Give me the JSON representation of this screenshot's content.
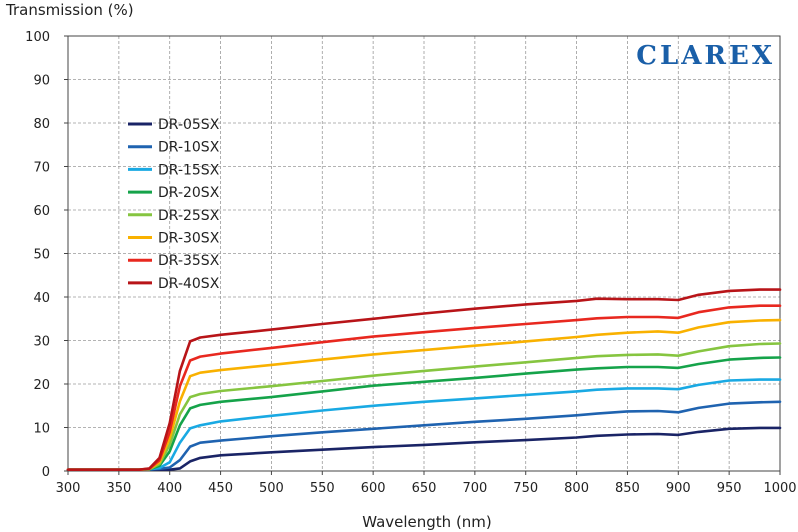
{
  "brand": {
    "text": "CLAREX",
    "color": "#1a5fa8"
  },
  "chart_data": {
    "type": "line",
    "title": "",
    "xlabel": "Wavelength (nm)",
    "ylabel": "Transmission (%)",
    "xlim": [
      300,
      1000
    ],
    "ylim": [
      0,
      100
    ],
    "x_ticks": [
      300,
      350,
      400,
      450,
      500,
      550,
      600,
      650,
      700,
      750,
      800,
      850,
      900,
      950,
      1000
    ],
    "y_ticks": [
      0,
      10,
      20,
      30,
      40,
      50,
      60,
      70,
      80,
      90,
      100
    ],
    "grid": "dashed",
    "legend_position": "upper-left",
    "x": [
      300,
      340,
      370,
      380,
      390,
      400,
      410,
      420,
      430,
      450,
      500,
      550,
      600,
      650,
      700,
      750,
      800,
      820,
      850,
      880,
      900,
      920,
      950,
      980,
      1000
    ],
    "series": [
      {
        "name": "DR-05SX",
        "color": "#1a2466",
        "values": [
          0.3,
          0.3,
          0.3,
          0.3,
          0.3,
          0.3,
          0.6,
          2.2,
          3.0,
          3.6,
          4.3,
          4.9,
          5.5,
          6.0,
          6.6,
          7.1,
          7.7,
          8.1,
          8.4,
          8.5,
          8.3,
          9.0,
          9.7,
          9.9,
          9.9
        ]
      },
      {
        "name": "DR-10SX",
        "color": "#1f63b0",
        "values": [
          0.3,
          0.3,
          0.3,
          0.4,
          0.5,
          0.8,
          2.5,
          5.6,
          6.5,
          7.0,
          8.0,
          8.9,
          9.7,
          10.5,
          11.3,
          12.0,
          12.8,
          13.2,
          13.7,
          13.8,
          13.5,
          14.5,
          15.5,
          15.8,
          15.9
        ]
      },
      {
        "name": "DR-15SX",
        "color": "#19a9e3",
        "values": [
          0.3,
          0.3,
          0.3,
          0.4,
          0.7,
          2.0,
          6.5,
          9.8,
          10.5,
          11.4,
          12.7,
          13.9,
          15.0,
          15.9,
          16.7,
          17.5,
          18.3,
          18.7,
          19.0,
          19.0,
          18.8,
          19.8,
          20.8,
          21.0,
          21.0
        ]
      },
      {
        "name": "DR-20SX",
        "color": "#15a34a",
        "values": [
          0.3,
          0.3,
          0.3,
          0.4,
          1.2,
          4.5,
          10.5,
          14.4,
          15.2,
          15.9,
          17.0,
          18.3,
          19.6,
          20.5,
          21.4,
          22.4,
          23.3,
          23.6,
          23.9,
          23.9,
          23.7,
          24.6,
          25.6,
          26.0,
          26.1
        ]
      },
      {
        "name": "DR-25SX",
        "color": "#86c540",
        "values": [
          0.3,
          0.3,
          0.3,
          0.4,
          1.6,
          6.0,
          13.0,
          17.0,
          17.7,
          18.4,
          19.5,
          20.7,
          21.9,
          23.0,
          24.0,
          25.0,
          26.0,
          26.4,
          26.7,
          26.8,
          26.5,
          27.5,
          28.7,
          29.2,
          29.3
        ]
      },
      {
        "name": "DR-30SX",
        "color": "#f9b100",
        "values": [
          0.3,
          0.3,
          0.3,
          0.5,
          2.0,
          7.5,
          16.0,
          21.8,
          22.6,
          23.2,
          24.4,
          25.6,
          26.8,
          27.8,
          28.8,
          29.8,
          30.8,
          31.3,
          31.8,
          32.1,
          31.8,
          33.0,
          34.2,
          34.6,
          34.7
        ]
      },
      {
        "name": "DR-35SX",
        "color": "#e8281f",
        "values": [
          0.3,
          0.3,
          0.3,
          0.5,
          2.5,
          9.0,
          19.5,
          25.4,
          26.3,
          27.0,
          28.3,
          29.6,
          30.9,
          31.9,
          32.9,
          33.8,
          34.7,
          35.1,
          35.4,
          35.4,
          35.2,
          36.5,
          37.6,
          38.0,
          38.0
        ]
      },
      {
        "name": "DR-40SX",
        "color": "#b81418",
        "values": [
          0.3,
          0.3,
          0.3,
          0.6,
          3.0,
          11.0,
          23.0,
          29.8,
          30.7,
          31.3,
          32.5,
          33.8,
          35.0,
          36.2,
          37.3,
          38.3,
          39.1,
          39.6,
          39.5,
          39.5,
          39.3,
          40.5,
          41.4,
          41.7,
          41.7
        ]
      }
    ]
  }
}
